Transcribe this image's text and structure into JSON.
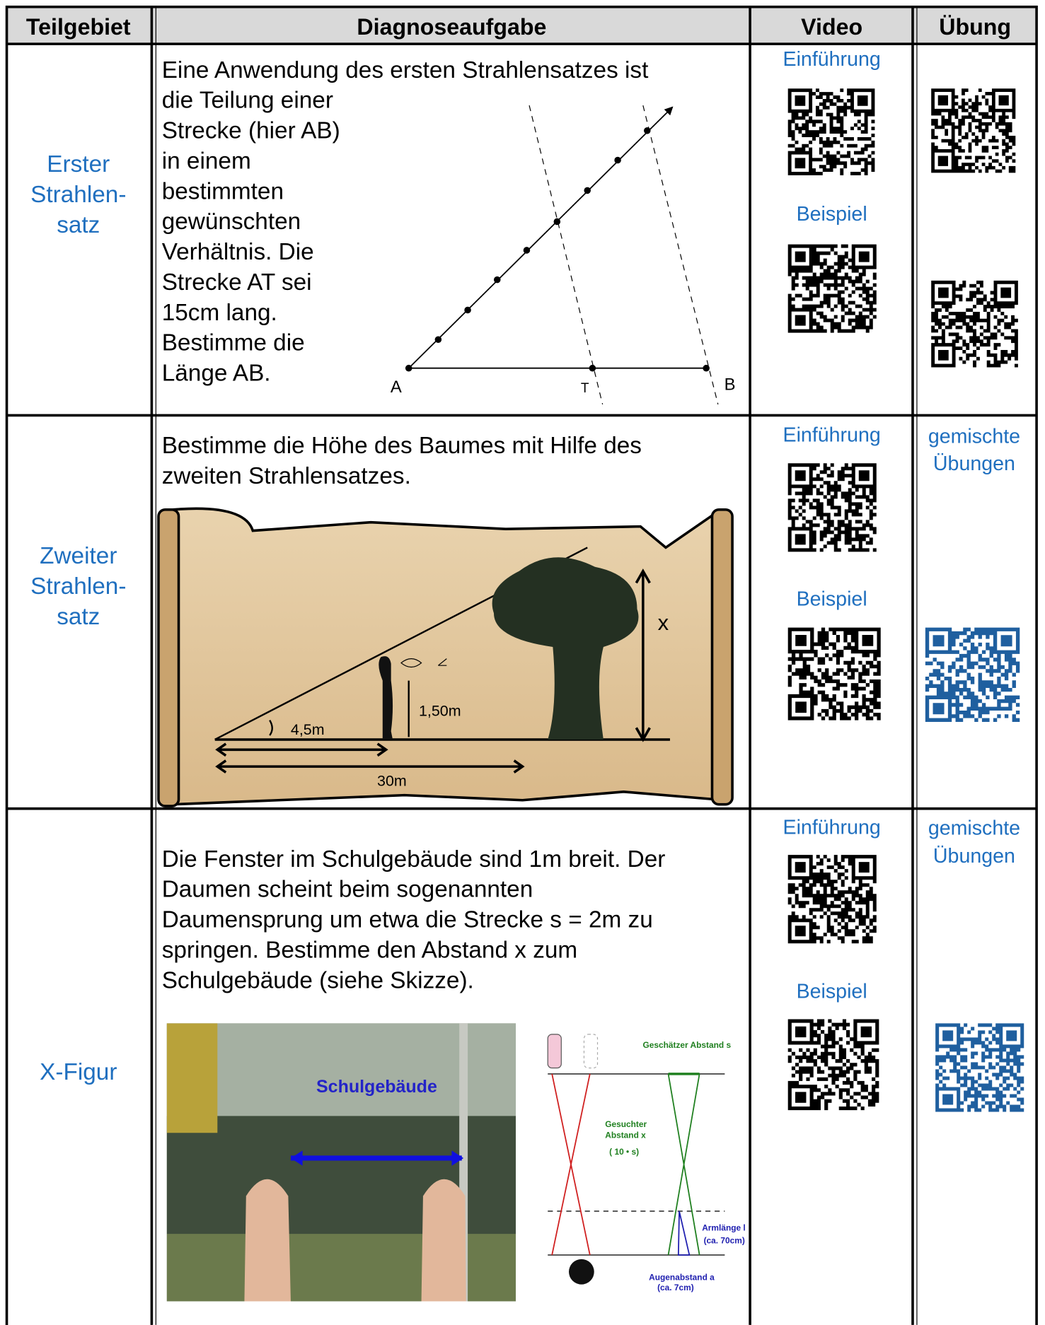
{
  "header": {
    "columns": [
      "Teilgebiet",
      "Diagnoseaufgabe",
      "Video",
      "Übung"
    ]
  },
  "rows": [
    {
      "topic": [
        "Erster",
        "Strahlen-",
        "satz"
      ],
      "task": [
        "Eine Anwendung des ersten Strahlensatzes ist",
        "die Teilung einer",
        "Strecke (hier AB)",
        "in einem",
        "bestimmten",
        "gewünschten",
        "Verhältnis. Die",
        "Strecke AT sei",
        "15cm lang.",
        "Bestimme die",
        "Länge AB."
      ],
      "video": [
        "Einführung",
        "Beispiel"
      ],
      "exercise": [],
      "figure": {
        "labels": [
          "A",
          "T",
          "B"
        ]
      }
    },
    {
      "topic": [
        "Zweiter",
        "Strahlen-",
        "satz"
      ],
      "task": [
        "Bestimme die Höhe des Baumes mit Hilfe des",
        "zweiten Strahlensatzes."
      ],
      "video": [
        "Einführung",
        "Beispiel"
      ],
      "exercise": [
        "gemischte",
        "Übungen"
      ],
      "figure": {
        "labels": [
          "x",
          "1,50m",
          "4,5m",
          "30m"
        ]
      }
    },
    {
      "topic": [
        "X-Figur"
      ],
      "task": [
        "Die Fenster im Schulgebäude sind 1m breit. Der",
        "Daumen scheint beim sogenannten",
        "Daumensprung um etwa die Strecke s = 2m zu",
        "springen. Bestimme den Abstand x zum",
        "Schulgebäude (siehe Skizze)."
      ],
      "video": [
        "Einführung",
        "Beispiel"
      ],
      "exercise": [
        "gemischte",
        "Übungen"
      ],
      "figure": {
        "labels": [
          "Schulgebäude",
          "Geschätzer Abstand s",
          "Gesuchter",
          "Abstand x",
          "( 10 • s)",
          "Armlänge l",
          "(ca. 70cm)",
          "Augenabstand a",
          "(ca. 7cm)"
        ]
      }
    }
  ]
}
